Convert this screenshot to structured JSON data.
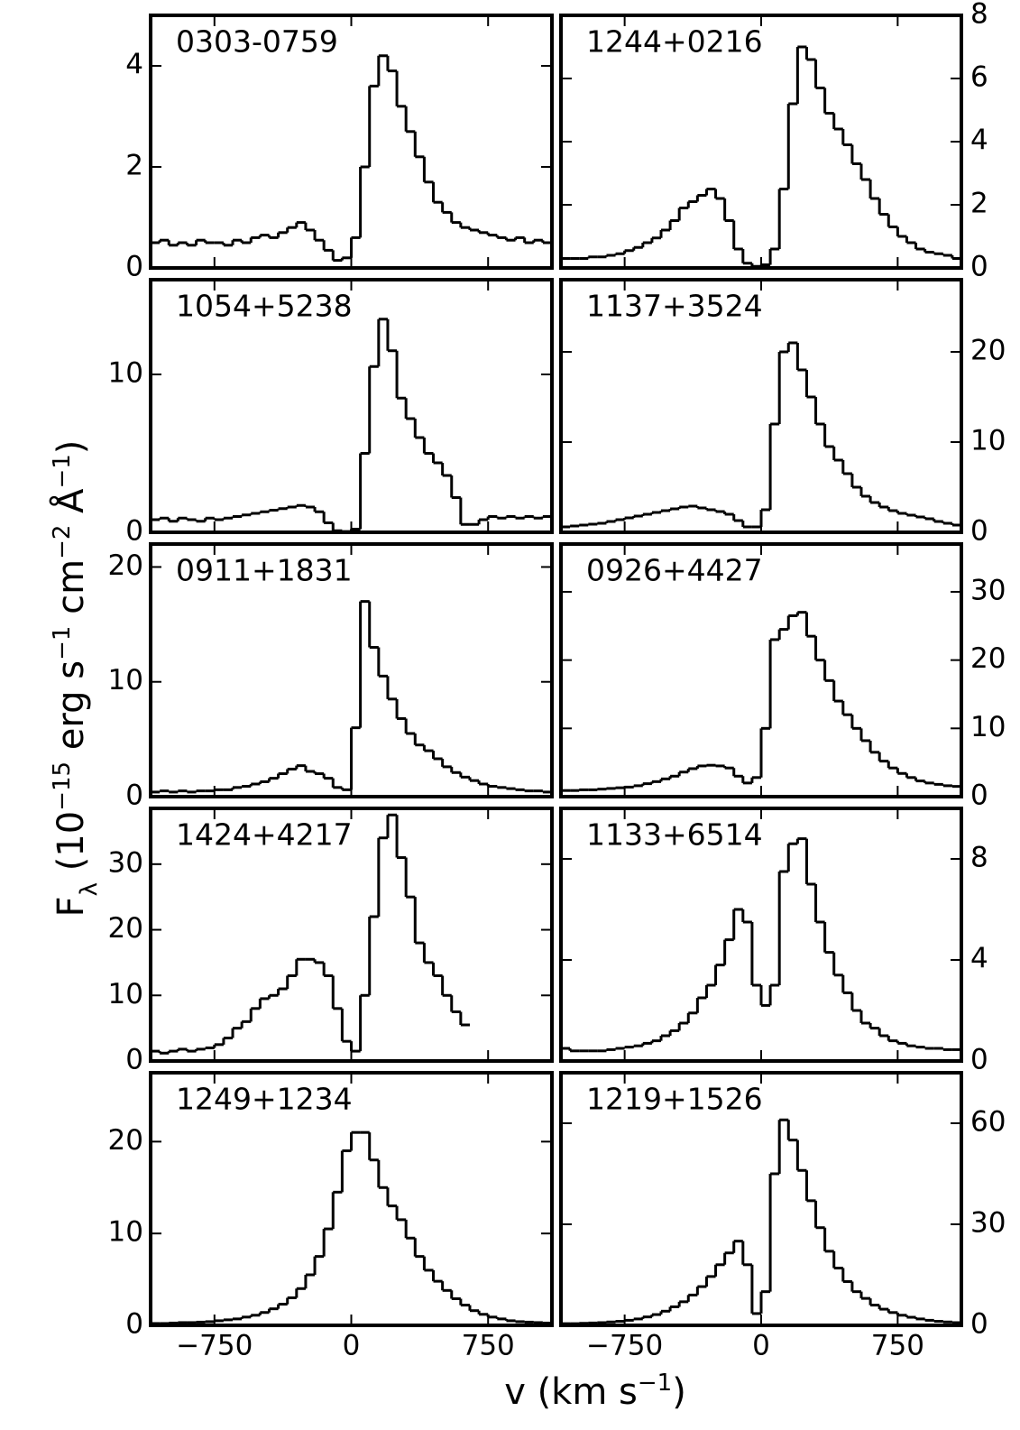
{
  "chart_data": [
    {
      "type": "step",
      "title": "0303-0759",
      "yaxis_side": "left",
      "color": "#000000",
      "xlim": [
        -1100,
        1100
      ],
      "xticks": [
        -750,
        0,
        750
      ],
      "ylim": [
        0,
        5
      ],
      "yticks": [
        0,
        2,
        4
      ],
      "x": [
        -1075,
        -1025,
        -975,
        -925,
        -875,
        -825,
        -775,
        -725,
        -675,
        -625,
        -575,
        -525,
        -475,
        -425,
        -375,
        -325,
        -275,
        -225,
        -175,
        -125,
        -75,
        -25,
        25,
        75,
        125,
        175,
        225,
        275,
        325,
        375,
        425,
        475,
        525,
        575,
        625,
        675,
        725,
        775,
        825,
        875,
        925,
        975,
        1025,
        1075
      ],
      "values": [
        0.5,
        0.55,
        0.45,
        0.5,
        0.45,
        0.55,
        0.5,
        0.5,
        0.45,
        0.55,
        0.5,
        0.6,
        0.65,
        0.6,
        0.7,
        0.8,
        0.9,
        0.75,
        0.55,
        0.35,
        0.15,
        0.2,
        0.6,
        2.0,
        3.6,
        4.2,
        3.9,
        3.2,
        2.7,
        2.2,
        1.7,
        1.3,
        1.1,
        0.9,
        0.8,
        0.75,
        0.7,
        0.65,
        0.6,
        0.55,
        0.6,
        0.5,
        0.55,
        0.5
      ]
    },
    {
      "type": "step",
      "title": "1244+0216",
      "yaxis_side": "right",
      "color": "#000000",
      "xlim": [
        -1100,
        1100
      ],
      "xticks": [
        -750,
        0,
        750
      ],
      "ylim": [
        0,
        8
      ],
      "yticks": [
        0,
        2,
        4,
        6,
        8
      ],
      "x": [
        -1075,
        -1025,
        -975,
        -925,
        -875,
        -825,
        -775,
        -725,
        -675,
        -625,
        -575,
        -525,
        -475,
        -425,
        -375,
        -325,
        -275,
        -225,
        -175,
        -125,
        -75,
        -25,
        25,
        75,
        125,
        175,
        225,
        275,
        325,
        375,
        425,
        475,
        525,
        575,
        625,
        675,
        725,
        775,
        825,
        875,
        925,
        975,
        1025,
        1075
      ],
      "values": [
        0.3,
        0.3,
        0.3,
        0.35,
        0.35,
        0.4,
        0.45,
        0.55,
        0.65,
        0.8,
        0.95,
        1.2,
        1.5,
        1.9,
        2.1,
        2.3,
        2.5,
        2.2,
        1.5,
        0.6,
        0.15,
        0.05,
        0.1,
        0.6,
        2.5,
        5.2,
        7.0,
        6.6,
        5.7,
        4.9,
        4.4,
        3.9,
        3.3,
        2.8,
        2.2,
        1.7,
        1.3,
        1.0,
        0.8,
        0.6,
        0.5,
        0.45,
        0.4,
        0.3
      ]
    },
    {
      "type": "step",
      "title": "1054+5238",
      "yaxis_side": "left",
      "color": "#000000",
      "xlim": [
        -1100,
        1100
      ],
      "xticks": [
        -750,
        0,
        750
      ],
      "ylim": [
        0,
        16
      ],
      "yticks": [
        0,
        10
      ],
      "x": [
        -1075,
        -1025,
        -975,
        -925,
        -875,
        -825,
        -775,
        -725,
        -675,
        -625,
        -575,
        -525,
        -475,
        -425,
        -375,
        -325,
        -275,
        -225,
        -175,
        -125,
        -75,
        -25,
        25,
        75,
        125,
        175,
        225,
        275,
        325,
        375,
        425,
        475,
        525,
        575,
        625,
        675,
        725,
        775,
        825,
        875,
        925,
        975,
        1025,
        1075
      ],
      "values": [
        0.8,
        0.9,
        0.7,
        0.9,
        0.8,
        0.7,
        0.9,
        0.8,
        0.9,
        1.0,
        1.1,
        1.2,
        1.3,
        1.4,
        1.5,
        1.6,
        1.7,
        1.6,
        1.3,
        0.6,
        0.1,
        0.05,
        0.2,
        5,
        10.5,
        13.5,
        11.5,
        8.5,
        7.2,
        6.0,
        5.0,
        4.4,
        3.6,
        2.2,
        0.5,
        0.5,
        0.8,
        1.0,
        0.9,
        1.0,
        0.9,
        1.0,
        0.9,
        1.0
      ]
    },
    {
      "type": "step",
      "title": "1137+3524",
      "yaxis_side": "right",
      "color": "#000000",
      "xlim": [
        -1100,
        1100
      ],
      "xticks": [
        -750,
        0,
        750
      ],
      "ylim": [
        0,
        28
      ],
      "yticks": [
        0,
        10,
        20
      ],
      "x": [
        -1075,
        -1025,
        -975,
        -925,
        -875,
        -825,
        -775,
        -725,
        -675,
        -625,
        -575,
        -525,
        -475,
        -425,
        -375,
        -325,
        -275,
        -225,
        -175,
        -125,
        -75,
        -25,
        25,
        75,
        125,
        175,
        225,
        275,
        325,
        375,
        425,
        475,
        525,
        575,
        625,
        675,
        725,
        775,
        825,
        875,
        925,
        975,
        1025,
        1075
      ],
      "values": [
        0.6,
        0.7,
        0.8,
        0.9,
        1.0,
        1.2,
        1.4,
        1.6,
        1.8,
        2.0,
        2.2,
        2.4,
        2.6,
        2.8,
        2.9,
        2.7,
        2.5,
        2.3,
        2.0,
        1.3,
        0.6,
        0.6,
        2.5,
        12,
        20,
        21,
        18,
        15,
        12,
        9.5,
        8,
        6.5,
        5,
        4,
        3.3,
        2.8,
        2.4,
        2.1,
        1.9,
        1.7,
        1.5,
        1.2,
        1.0,
        0.8
      ]
    },
    {
      "type": "step",
      "title": "0911+1831",
      "yaxis_side": "left",
      "color": "#000000",
      "xlim": [
        -1100,
        1100
      ],
      "xticks": [
        -750,
        0,
        750
      ],
      "ylim": [
        0,
        22
      ],
      "yticks": [
        0,
        10,
        20
      ],
      "x": [
        -1075,
        -1025,
        -975,
        -925,
        -875,
        -825,
        -775,
        -725,
        -675,
        -625,
        -575,
        -525,
        -475,
        -425,
        -375,
        -325,
        -275,
        -225,
        -175,
        -125,
        -75,
        -25,
        25,
        75,
        125,
        175,
        225,
        275,
        325,
        375,
        425,
        475,
        525,
        575,
        625,
        675,
        725,
        775,
        825,
        875,
        925,
        975,
        1025,
        1075
      ],
      "values": [
        0.4,
        0.5,
        0.4,
        0.5,
        0.4,
        0.5,
        0.5,
        0.6,
        0.6,
        0.8,
        0.9,
        1.1,
        1.3,
        1.6,
        2.0,
        2.4,
        2.7,
        2.2,
        2.0,
        1.6,
        0.8,
        0.6,
        6,
        17,
        13,
        10.5,
        8.5,
        6.8,
        5.5,
        4.5,
        4.0,
        3.3,
        2.6,
        2.1,
        1.7,
        1.4,
        1.1,
        0.9,
        0.8,
        0.7,
        0.6,
        0.5,
        0.5,
        0.4
      ]
    },
    {
      "type": "step",
      "title": "0926+4427",
      "yaxis_side": "right",
      "color": "#000000",
      "xlim": [
        -1100,
        1100
      ],
      "xticks": [
        -750,
        0,
        750
      ],
      "ylim": [
        0,
        37
      ],
      "yticks": [
        0,
        10,
        20,
        30
      ],
      "x": [
        -1075,
        -1025,
        -975,
        -925,
        -875,
        -825,
        -775,
        -725,
        -675,
        -625,
        -575,
        -525,
        -475,
        -425,
        -375,
        -325,
        -275,
        -225,
        -175,
        -125,
        -75,
        -25,
        25,
        75,
        125,
        175,
        225,
        275,
        325,
        375,
        425,
        475,
        525,
        575,
        625,
        675,
        725,
        775,
        825,
        875,
        925,
        975,
        1025,
        1075
      ],
      "values": [
        0.9,
        0.9,
        1.0,
        1.0,
        1.1,
        1.2,
        1.3,
        1.4,
        1.6,
        1.9,
        2.2,
        2.6,
        3.0,
        3.6,
        4.1,
        4.5,
        4.6,
        4.5,
        4.2,
        3.0,
        2.0,
        2.8,
        10,
        23,
        24.5,
        26.5,
        27,
        23.5,
        20,
        17,
        14,
        12,
        10,
        8.2,
        6.5,
        5.2,
        4.2,
        3.4,
        2.8,
        2.3,
        2.0,
        1.8,
        1.6,
        1.5
      ]
    },
    {
      "type": "step",
      "title": "1424+4217",
      "yaxis_side": "left",
      "color": "#000000",
      "xlim": [
        -1100,
        1100
      ],
      "xticks": [
        -750,
        0,
        750
      ],
      "ylim": [
        0,
        38.5
      ],
      "yticks": [
        0,
        10,
        20,
        30
      ],
      "x": [
        -1075,
        -1025,
        -975,
        -925,
        -875,
        -825,
        -775,
        -725,
        -675,
        -625,
        -575,
        -525,
        -475,
        -425,
        -375,
        -325,
        -275,
        -225,
        -175,
        -125,
        -75,
        -25,
        25,
        75,
        125,
        175,
        225,
        275,
        325,
        375,
        425,
        475,
        525,
        575,
        625,
        675,
        725,
        775,
        825,
        875,
        925,
        975,
        1025,
        1075
      ],
      "values": [
        1.5,
        1.2,
        1.5,
        1.8,
        1.5,
        1.8,
        2.0,
        2.5,
        3.5,
        5,
        6,
        8,
        9.5,
        10,
        11,
        13,
        15.5,
        15.5,
        15,
        13,
        8,
        3,
        1.5,
        10,
        22,
        34,
        37.5,
        31,
        25,
        18,
        15,
        13,
        10,
        7.5,
        5.5,
        null,
        null,
        null,
        null,
        null,
        null,
        null,
        null,
        null
      ]
    },
    {
      "type": "step",
      "title": "1133+6514",
      "yaxis_side": "right",
      "color": "#000000",
      "xlim": [
        -1100,
        1100
      ],
      "xticks": [
        -750,
        0,
        750
      ],
      "ylim": [
        0,
        10
      ],
      "yticks": [
        0,
        4,
        8
      ],
      "x": [
        -1075,
        -1025,
        -975,
        -925,
        -875,
        -825,
        -775,
        -725,
        -675,
        -625,
        -575,
        -525,
        -475,
        -425,
        -375,
        -325,
        -275,
        -225,
        -175,
        -125,
        -75,
        -25,
        25,
        75,
        125,
        175,
        225,
        275,
        325,
        375,
        425,
        475,
        525,
        575,
        625,
        675,
        725,
        775,
        825,
        875,
        925,
        975,
        1025,
        1075
      ],
      "values": [
        0.5,
        0.4,
        0.4,
        0.4,
        0.4,
        0.45,
        0.5,
        0.55,
        0.6,
        0.7,
        0.8,
        1.0,
        1.2,
        1.5,
        1.9,
        2.5,
        3.0,
        3.8,
        4.8,
        6.0,
        5.5,
        3.0,
        2.2,
        3.0,
        7.5,
        8.6,
        8.8,
        7.0,
        5.5,
        4.3,
        3.4,
        2.7,
        2.0,
        1.5,
        1.3,
        1.0,
        0.8,
        0.7,
        0.6,
        0.55,
        0.5,
        0.5,
        0.45,
        0.45
      ]
    },
    {
      "type": "step",
      "title": "1249+1234",
      "yaxis_side": "left",
      "color": "#000000",
      "xlim": [
        -1100,
        1100
      ],
      "xticks": [
        {
          "value": -750,
          "label": "−750"
        },
        0,
        750
      ],
      "ylim": [
        0,
        27.5
      ],
      "yticks": [
        0,
        10,
        20
      ],
      "x": [
        -1075,
        -1025,
        -975,
        -925,
        -875,
        -825,
        -775,
        -725,
        -675,
        -625,
        -575,
        -525,
        -475,
        -425,
        -375,
        -325,
        -275,
        -225,
        -175,
        -125,
        -75,
        -25,
        25,
        75,
        125,
        175,
        225,
        275,
        325,
        375,
        425,
        475,
        525,
        575,
        625,
        675,
        725,
        775,
        825,
        875,
        925,
        975,
        1025,
        1075
      ],
      "values": [
        0.2,
        0.2,
        0.25,
        0.3,
        0.3,
        0.35,
        0.4,
        0.5,
        0.6,
        0.7,
        0.9,
        1.1,
        1.4,
        1.8,
        2.3,
        3.0,
        4.0,
        5.5,
        7.5,
        10.5,
        14.5,
        19,
        21,
        21,
        18,
        15,
        13,
        11.5,
        9.5,
        7.5,
        6.0,
        4.8,
        3.8,
        2.9,
        2.2,
        1.6,
        1.2,
        0.9,
        0.7,
        0.5,
        0.4,
        0.35,
        0.3,
        0.25
      ]
    },
    {
      "type": "step",
      "title": "1219+1526",
      "yaxis_side": "right",
      "color": "#000000",
      "xlim": [
        -1100,
        1100
      ],
      "xticks": [
        {
          "value": -750,
          "label": "−750"
        },
        0,
        750
      ],
      "ylim": [
        0,
        75
      ],
      "yticks": [
        0,
        30,
        60
      ],
      "x": [
        -1075,
        -1025,
        -975,
        -925,
        -875,
        -825,
        -775,
        -725,
        -675,
        -625,
        -575,
        -525,
        -475,
        -425,
        -375,
        -325,
        -275,
        -225,
        -175,
        -125,
        -75,
        -25,
        25,
        75,
        125,
        175,
        225,
        275,
        325,
        375,
        425,
        475,
        525,
        575,
        625,
        675,
        725,
        775,
        825,
        875,
        925,
        975,
        1025,
        1075
      ],
      "values": [
        0.5,
        0.5,
        0.6,
        0.7,
        0.8,
        1.0,
        1.2,
        1.5,
        1.9,
        2.5,
        3.2,
        4.2,
        5.5,
        7.0,
        9.0,
        11.5,
        14.5,
        18,
        21.5,
        25,
        18,
        3.5,
        10,
        45,
        61,
        55,
        46,
        37,
        29,
        22,
        17,
        13,
        10,
        8,
        6,
        4.8,
        3.8,
        3.0,
        2.4,
        1.9,
        1.5,
        1.2,
        1.0,
        0.8
      ]
    }
  ],
  "xlabel": [
    {
      "text": "v (km s"
    },
    {
      "text": "−1",
      "shift": "super"
    },
    {
      "text": ")"
    }
  ],
  "ylabel": [
    {
      "text": "F"
    },
    {
      "text": "λ",
      "shift": "sub"
    },
    {
      "text": " (10"
    },
    {
      "text": "−15",
      "shift": "super"
    },
    {
      "text": " erg s"
    },
    {
      "text": "−1",
      "shift": "super"
    },
    {
      "text": " cm"
    },
    {
      "text": "−2",
      "shift": "super"
    },
    {
      "text": " Å"
    },
    {
      "text": "−1",
      "shift": "super"
    },
    {
      "text": ")"
    }
  ]
}
